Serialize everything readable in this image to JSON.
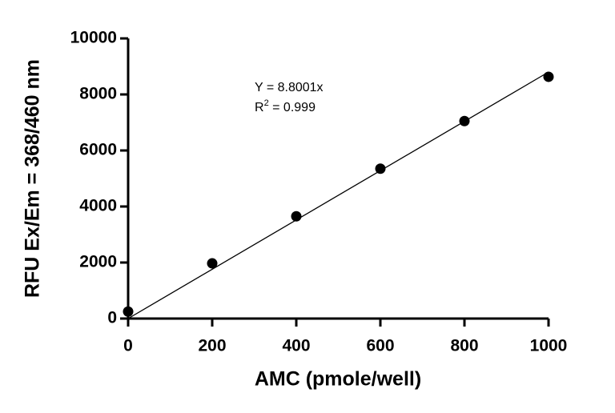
{
  "chart_data": {
    "type": "scatter",
    "x_label": "AMC (pmole/well)",
    "y_label": "RFU Ex/Em = 368/460 nm",
    "x": [
      0,
      200,
      400,
      600,
      800,
      1000
    ],
    "series": [
      {
        "color": "#000000",
        "values": [
          250,
          1970,
          3650,
          5350,
          7050,
          8630
        ]
      }
    ],
    "fit": {
      "x": [
        0,
        1000
      ],
      "values": [
        0,
        8800
      ]
    },
    "equation": "Y = 8.8001x",
    "r2": {
      "base": "R",
      "sup": "2",
      "rest": " = 0.999"
    },
    "xlim": [
      0,
      1000
    ],
    "xticks": [
      0,
      200,
      400,
      600,
      800,
      1000
    ],
    "ylim": [
      0,
      10000
    ],
    "yticks": [
      0,
      2000,
      4000,
      6000,
      8000,
      10000
    ]
  }
}
